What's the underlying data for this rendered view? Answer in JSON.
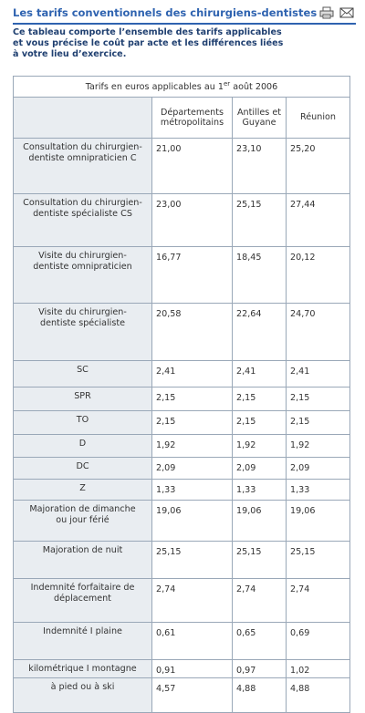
{
  "header": {
    "title": "Les tarifs conventionnels des chirurgiens-dentistes",
    "icons": [
      "printer-icon",
      "envelope-icon"
    ]
  },
  "intro": {
    "line1": "Ce tableau comporte l’ensemble des tarifs applicables",
    "line2": "et vous précise le coût par acte et les différences liées",
    "line3": "à votre lieu d’exercice."
  },
  "table": {
    "caption_text": "Tarifs en euros applicables au 1",
    "caption_sup": "er",
    "caption_end": " août 2006",
    "columns": [
      "Départements métropolitains",
      "Antilles et Guyane",
      "Réunion"
    ],
    "rows": [
      {
        "label": "Consultation du chirurgien-dentiste omnipraticien C",
        "values": [
          "21,00",
          "23,10",
          "25,20"
        ]
      },
      {
        "label": "Consultation du chirurgien-dentiste spécialiste CS",
        "values": [
          "23,00",
          "25,15",
          "27,44"
        ]
      },
      {
        "label": "Visite du chirurgien-dentiste omnipraticien",
        "values": [
          "16,77",
          "18,45",
          "20,12"
        ]
      },
      {
        "label": "Visite du chirurgien-dentiste spécialiste",
        "values": [
          "20,58",
          "22,64",
          "24,70"
        ]
      },
      {
        "label": "SC",
        "values": [
          "2,41",
          "2,41",
          "2,41"
        ]
      },
      {
        "label": "SPR",
        "values": [
          "2,15",
          "2,15",
          "2,15"
        ]
      },
      {
        "label": "TO",
        "values": [
          "2,15",
          "2,15",
          "2,15"
        ]
      },
      {
        "label": "D",
        "values": [
          "1,92",
          "1,92",
          "1,92"
        ]
      },
      {
        "label": "DC",
        "values": [
          "2,09",
          "2,09",
          "2,09"
        ]
      },
      {
        "label": "Z",
        "values": [
          "1,33",
          "1,33",
          "1,33"
        ]
      },
      {
        "label": "Majoration de dimanche ou jour férié",
        "values": [
          "19,06",
          "19,06",
          "19,06"
        ]
      },
      {
        "label": "Majoration de nuit",
        "values": [
          "25,15",
          "25,15",
          "25,15"
        ]
      },
      {
        "label": "Indemnité forfaitaire de déplacement",
        "values": [
          "2,74",
          "2,74",
          "2,74"
        ]
      },
      {
        "label": "Indemnité I plaine",
        "values": [
          "0,61",
          "0,65",
          "0,69"
        ]
      },
      {
        "label": "kilométrique I montagne",
        "values": [
          "0,91",
          "0,97",
          "1,02"
        ]
      },
      {
        "label": "à pied ou à ski",
        "values": [
          "4,57",
          "4,88",
          "4,88"
        ]
      }
    ]
  }
}
